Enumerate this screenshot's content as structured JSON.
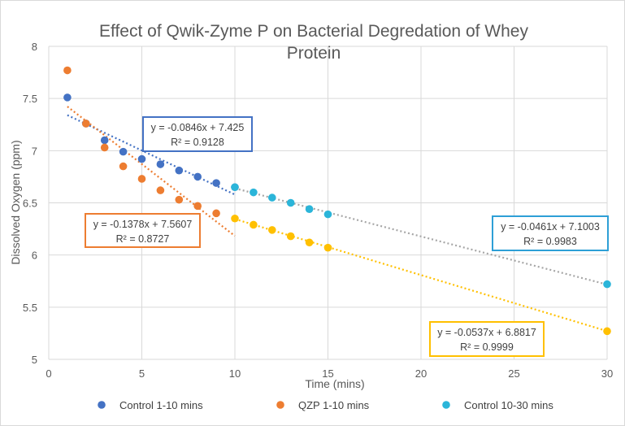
{
  "chart_data": {
    "type": "scatter",
    "title_lines": [
      "Effect of Qwik-Zyme P on Bacterial Degredation of Whey",
      "Protein"
    ],
    "xlabel": "Time (mins)",
    "ylabel": "Dissolved Oxygen (ppm)",
    "xlim": [
      0,
      30
    ],
    "ylim": [
      5,
      8
    ],
    "xticks": [
      0,
      5,
      10,
      15,
      20,
      25,
      30
    ],
    "yticks": [
      5,
      5.5,
      6,
      6.5,
      7,
      7.5,
      8
    ],
    "xtick_labels": [
      "0",
      "5",
      "10",
      "15",
      "20",
      "25",
      "30"
    ],
    "ytick_labels": [
      "5",
      "5.5",
      "6",
      "6.5",
      "7",
      "7.5",
      "8"
    ],
    "grid": true,
    "legend_position": "bottom",
    "series": [
      {
        "name": "Control 1-10 mins",
        "color": "#4472c4",
        "points": [
          [
            1,
            7.51
          ],
          [
            2,
            7.26
          ],
          [
            3,
            7.1
          ],
          [
            4,
            6.99
          ],
          [
            5,
            6.92
          ],
          [
            6,
            6.87
          ],
          [
            7,
            6.81
          ],
          [
            8,
            6.75
          ],
          [
            9,
            6.69
          ],
          [
            10,
            6.65
          ]
        ]
      },
      {
        "name": "QZP 1-10 mins",
        "color": "#ed7d31",
        "points": [
          [
            1,
            7.77
          ],
          [
            2,
            7.26
          ],
          [
            3,
            7.03
          ],
          [
            4,
            6.85
          ],
          [
            5,
            6.73
          ],
          [
            6,
            6.62
          ],
          [
            7,
            6.53
          ],
          [
            8,
            6.47
          ],
          [
            9,
            6.4
          ]
        ]
      },
      {
        "name": "Control 10-30 mins",
        "color": "#2bb5d9",
        "points": [
          [
            10,
            6.65
          ],
          [
            11,
            6.6
          ],
          [
            12,
            6.55
          ],
          [
            13,
            6.5
          ],
          [
            14,
            6.44
          ],
          [
            15,
            6.39
          ],
          [
            30,
            5.72
          ]
        ]
      },
      {
        "name": "",
        "color": "#ffc000",
        "points": [
          [
            10,
            6.35
          ],
          [
            11,
            6.29
          ],
          [
            12,
            6.24
          ],
          [
            13,
            6.18
          ],
          [
            14,
            6.12
          ],
          [
            15,
            6.07
          ],
          [
            30,
            5.27
          ]
        ]
      }
    ],
    "trendlines": [
      {
        "slope": -0.0846,
        "intercept": 7.425,
        "x_range": [
          1,
          10
        ],
        "color": "#4472c4",
        "equation": "y = -0.0846x + 7.425",
        "r2": "R² = 0.9128",
        "box_color": "#4472c4"
      },
      {
        "slope": -0.1378,
        "intercept": 7.5607,
        "x_range": [
          1,
          10
        ],
        "color": "#ed7d31",
        "equation": "y = -0.1378x + 7.5607",
        "r2": "R² = 0.8727",
        "box_color": "#ed7d31"
      },
      {
        "slope": -0.0461,
        "intercept": 7.1003,
        "x_range": [
          10,
          30
        ],
        "color": "#a6a6a6",
        "equation": "y = -0.0461x + 7.1003",
        "r2": "R² = 0.9983",
        "box_color": "#2e9fd6"
      },
      {
        "slope": -0.0537,
        "intercept": 6.8817,
        "x_range": [
          10,
          30
        ],
        "color": "#ffc000",
        "equation": "y = -0.0537x + 6.8817",
        "r2": "R² = 0.9999",
        "box_color": "#ffc000"
      }
    ],
    "legend": [
      {
        "label": "Control 1-10 mins",
        "color": "#4472c4"
      },
      {
        "label": "QZP 1-10 mins",
        "color": "#ed7d31"
      },
      {
        "label": "Control 10-30 mins",
        "color": "#2bb5d9"
      }
    ]
  }
}
